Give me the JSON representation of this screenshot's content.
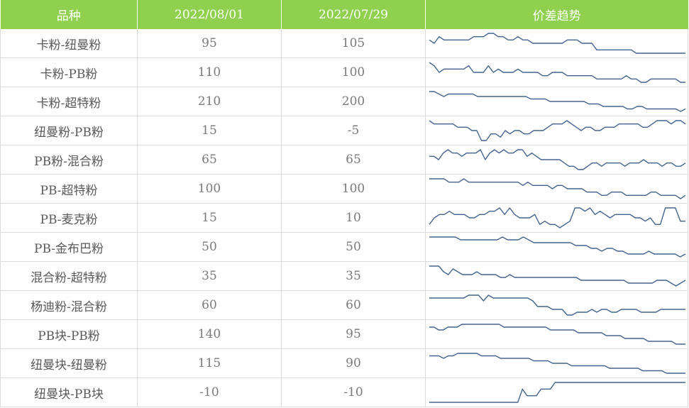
{
  "header": {
    "col_variety": "品种",
    "col_date1": "2022/08/01",
    "col_date2": "2022/07/29",
    "col_trend": "价差趋势"
  },
  "colors": {
    "header_bg": "#8fd14f",
    "line": "#44648f"
  },
  "rows": [
    {
      "name": "卡粉-纽曼粉",
      "v1": "95",
      "v2": "105"
    },
    {
      "name": "卡粉-PB粉",
      "v1": "110",
      "v2": "100"
    },
    {
      "name": "卡粉-超特粉",
      "v1": "210",
      "v2": "200"
    },
    {
      "name": "纽曼粉-PB粉",
      "v1": "15",
      "v2": "-5"
    },
    {
      "name": "PB粉-混合粉",
      "v1": "65",
      "v2": "65"
    },
    {
      "name": "PB-超特粉",
      "v1": "100",
      "v2": "100"
    },
    {
      "name": "PB-麦克粉",
      "v1": "15",
      "v2": "10"
    },
    {
      "name": "PB-金布巴粉",
      "v1": "50",
      "v2": "50"
    },
    {
      "name": "混合粉-超特粉",
      "v1": "35",
      "v2": "35"
    },
    {
      "name": "杨迪粉-混合粉",
      "v1": "60",
      "v2": "60"
    },
    {
      "name": "PB块-PB粉",
      "v1": "140",
      "v2": "95"
    },
    {
      "name": "纽曼块-纽曼粉",
      "v1": "115",
      "v2": "90"
    },
    {
      "name": "纽曼块-PB块",
      "v1": "-10",
      "v2": "-10"
    }
  ],
  "chart_data": {
    "type": "line",
    "series": [
      {
        "name": "卡粉-纽曼粉",
        "values": [
          8,
          7,
          9,
          8,
          8,
          8,
          8,
          8,
          8,
          9,
          9,
          9,
          10,
          10,
          9,
          9,
          8,
          8,
          9,
          8,
          8,
          7,
          7,
          7,
          7,
          7,
          7,
          7,
          8,
          8,
          8,
          7,
          7,
          7,
          5,
          5,
          5,
          5,
          5,
          5,
          5,
          5,
          4,
          4,
          4,
          4,
          4,
          4,
          4,
          4,
          4,
          4,
          4
        ]
      },
      {
        "name": "卡粉-PB粉",
        "values": [
          9,
          8,
          6,
          7,
          7,
          7,
          7,
          7,
          8,
          6,
          6,
          6,
          8,
          6,
          7,
          6,
          6,
          6,
          7,
          6,
          6,
          6,
          6,
          5,
          5,
          6,
          6,
          6,
          5,
          5,
          5,
          5,
          5,
          5,
          4,
          4,
          4,
          4,
          4,
          4,
          5,
          4,
          4,
          3,
          3,
          4,
          4,
          4,
          4,
          4,
          4,
          3,
          3
        ]
      },
      {
        "name": "卡粉-超特粉",
        "values": [
          9,
          9,
          8,
          7,
          8,
          8,
          8,
          8,
          8,
          8,
          7,
          7,
          7,
          7,
          7,
          7,
          7,
          7,
          7,
          7,
          7,
          6,
          6,
          6,
          6,
          5,
          5,
          5,
          5,
          5,
          5,
          5,
          5,
          4,
          4,
          4,
          3,
          3,
          3,
          3,
          3,
          2,
          2,
          3,
          3,
          2,
          2,
          2,
          2,
          2,
          2,
          2,
          1,
          2
        ]
      },
      {
        "name": "纽曼粉-PB粉",
        "values": [
          9,
          8,
          8,
          8,
          8,
          8,
          7,
          7,
          7,
          6,
          6,
          3,
          3,
          5,
          5,
          4,
          6,
          5,
          6,
          6,
          5,
          5,
          6,
          6,
          6,
          7,
          8,
          8,
          8,
          9,
          8,
          7,
          6,
          7,
          7,
          6,
          6,
          7,
          7,
          7,
          8,
          8,
          8,
          8,
          8,
          7,
          7,
          8,
          9,
          9,
          9,
          8,
          9,
          9,
          8
        ]
      },
      {
        "name": "PB粉-混合粉",
        "values": [
          7,
          7,
          6,
          8,
          9,
          8,
          8,
          7,
          8,
          8,
          8,
          9,
          6,
          8,
          9,
          8,
          9,
          8,
          8,
          9,
          9,
          7,
          8,
          7,
          6,
          6,
          6,
          6,
          6,
          5,
          4,
          4,
          3,
          3,
          4,
          5,
          5,
          4,
          5,
          5,
          5,
          5,
          4,
          5,
          5,
          5,
          6,
          5,
          5,
          5,
          4,
          5,
          5,
          4,
          4,
          5
        ]
      },
      {
        "name": "PB-超特粉",
        "values": [
          9,
          9,
          9,
          9,
          8,
          8,
          8,
          9,
          8,
          8,
          8,
          8,
          8,
          8,
          8,
          8,
          8,
          8,
          8,
          7,
          8,
          7,
          7,
          7,
          7,
          6,
          7,
          7,
          6,
          6,
          6,
          6,
          5,
          5,
          5,
          4,
          4,
          5,
          5,
          5,
          4,
          4,
          4,
          4,
          4,
          5,
          5,
          4,
          4,
          4,
          4,
          3,
          4
        ]
      },
      {
        "name": "PB-麦克粉",
        "values": [
          4,
          6,
          7,
          7,
          8,
          7,
          7,
          7,
          6,
          6,
          7,
          7,
          8,
          8,
          9,
          7,
          9,
          7,
          6,
          6,
          6,
          7,
          4,
          5,
          4,
          4,
          3,
          4,
          5,
          9,
          9,
          8,
          9,
          7,
          8,
          7,
          6,
          7,
          7,
          7,
          7,
          6,
          6,
          5,
          6,
          4,
          4,
          9,
          9,
          9,
          5,
          5
        ]
      },
      {
        "name": "PB-金布巴粉",
        "values": [
          9,
          9,
          9,
          9,
          9,
          9,
          8,
          8,
          8,
          8,
          8,
          8,
          8,
          8,
          9,
          8,
          8,
          8,
          9,
          8,
          7,
          7,
          7,
          7,
          7,
          7,
          7,
          7,
          6,
          6,
          6,
          5,
          5,
          4,
          5,
          5,
          4,
          4,
          3,
          3,
          3,
          3,
          4,
          3,
          3,
          3,
          3,
          3,
          2,
          3
        ]
      },
      {
        "name": "混合粉-超特粉",
        "values": [
          9,
          9,
          9,
          7,
          6,
          8,
          7,
          6,
          6,
          6,
          7,
          6,
          6,
          6,
          6,
          5,
          5,
          6,
          5,
          5,
          5,
          5,
          5,
          5,
          5,
          5,
          5,
          5,
          5,
          5,
          5,
          5,
          4,
          4,
          4,
          4,
          4,
          4,
          4,
          4,
          4,
          4,
          3,
          3,
          3,
          3,
          3,
          3,
          4,
          4,
          4,
          3,
          2,
          3,
          4
        ]
      },
      {
        "name": "杨迪粉-混合粉",
        "values": [
          9,
          9,
          9,
          9,
          9,
          9,
          9,
          9,
          10,
          10,
          10,
          8,
          10,
          9,
          9,
          9,
          9,
          9,
          9,
          9,
          9,
          8,
          6,
          6,
          6,
          5,
          5,
          5,
          3,
          3,
          4,
          4,
          4,
          5,
          4,
          5,
          5,
          4,
          4,
          5,
          5,
          5,
          5,
          4,
          4,
          4,
          4,
          5,
          5,
          5,
          5,
          5,
          5
        ]
      },
      {
        "name": "PB块-PB粉",
        "values": [
          9,
          9,
          8,
          8,
          9,
          9,
          9,
          10,
          10,
          10,
          10,
          10,
          10,
          10,
          10,
          10,
          9,
          9,
          9,
          9,
          9,
          9,
          9,
          9,
          9,
          9,
          8,
          8,
          8,
          8,
          8,
          8,
          7,
          7,
          7,
          7,
          7,
          7,
          6,
          6,
          6,
          6,
          5,
          5,
          5,
          5,
          5,
          4,
          4,
          4,
          4,
          4,
          4,
          3,
          3,
          3
        ]
      },
      {
        "name": "纽曼块-纽曼粉",
        "values": [
          9,
          9,
          9,
          8,
          9,
          9,
          10,
          10,
          10,
          10,
          10,
          9,
          9,
          9,
          9,
          8,
          8,
          8,
          8,
          8,
          8,
          8,
          7,
          7,
          7,
          7,
          6,
          6,
          6,
          6,
          5,
          5,
          5,
          5,
          5,
          5,
          5,
          5,
          4,
          4,
          4,
          4,
          4,
          4,
          4,
          3,
          3,
          3,
          3,
          3,
          2,
          2,
          2,
          2,
          2
        ]
      },
      {
        "name": "纽曼块-PB块",
        "values": [
          2,
          2,
          2,
          2,
          2,
          2,
          2,
          2,
          2,
          2,
          2,
          2,
          2,
          2,
          2,
          2,
          2,
          2,
          2,
          2,
          4,
          3,
          3,
          3,
          4,
          4,
          4,
          5,
          5,
          5,
          5,
          5,
          5,
          5,
          5,
          5,
          5,
          5,
          5,
          5,
          5,
          5,
          5,
          5,
          5,
          5,
          5,
          5,
          5,
          5,
          5,
          5,
          5,
          5,
          5,
          5
        ]
      }
    ]
  }
}
